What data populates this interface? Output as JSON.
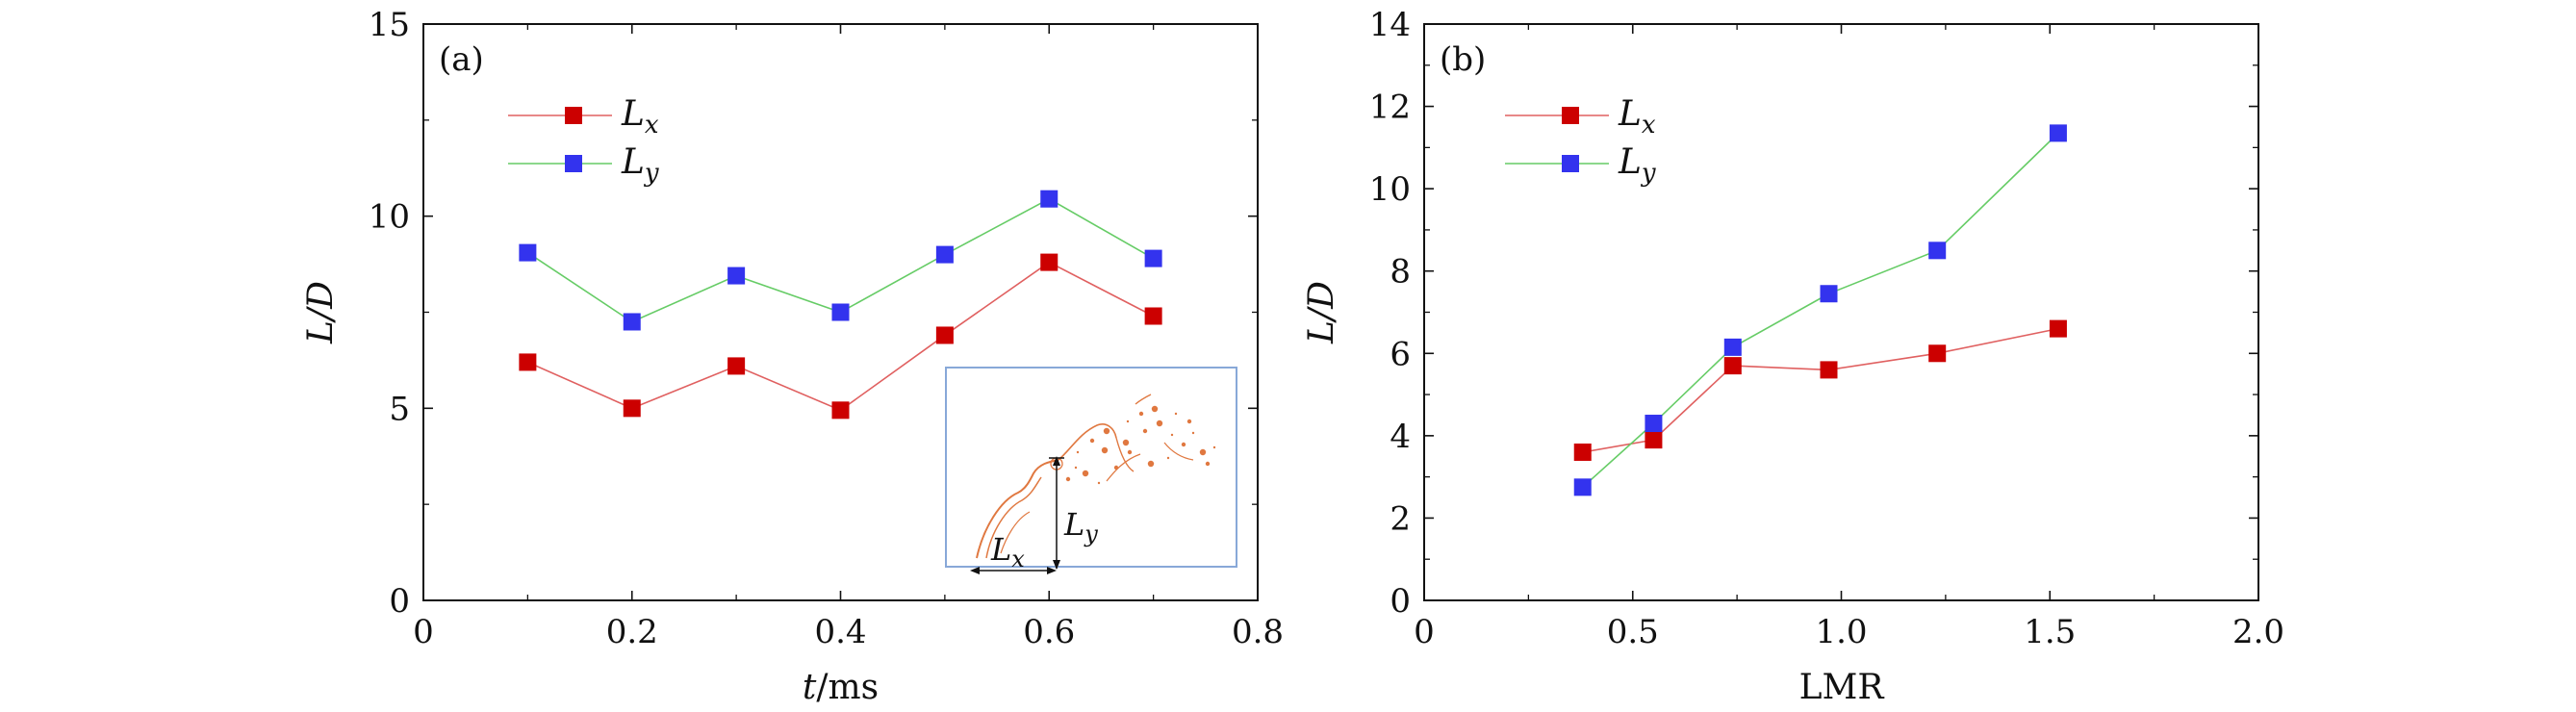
{
  "colors": {
    "lx_marker": "#cc0000",
    "lx_line": "#e06060",
    "ly_marker": "#3333ee",
    "ly_line": "#66cc66",
    "inset_border": "#88a8d8",
    "droplet": "#e07840"
  },
  "chart_data": [
    {
      "type": "line",
      "panel_label": "(a)",
      "xlabel_var": "t",
      "xlabel_unit": "/ms",
      "ylabel": "L/D",
      "xlim": [
        0,
        0.8
      ],
      "ylim": [
        0,
        15
      ],
      "xticks": [
        0,
        0.2,
        0.4,
        0.6,
        0.8
      ],
      "xtick_labels": [
        "0",
        "0.2",
        "0.4",
        "0.6",
        "0.8"
      ],
      "yticks": [
        0,
        5,
        10,
        15
      ],
      "ytick_labels": [
        "0",
        "5",
        "10",
        "15"
      ],
      "x": [
        0.1,
        0.2,
        0.3,
        0.4,
        0.5,
        0.6,
        0.7
      ],
      "series": [
        {
          "name": "Lx",
          "label_main": "L",
          "label_sub": "x",
          "values": [
            6.2,
            5.0,
            6.1,
            4.95,
            6.9,
            8.8,
            7.4
          ]
        },
        {
          "name": "Ly",
          "label_main": "L",
          "label_sub": "y",
          "values": [
            9.05,
            7.25,
            8.45,
            7.5,
            9.0,
            10.45,
            8.9
          ]
        }
      ],
      "legend_position": "top-left",
      "inset": {
        "label_x_main": "L",
        "label_x_sub": "x",
        "label_y_main": "L",
        "label_y_sub": "y"
      }
    },
    {
      "type": "line",
      "panel_label": "(b)",
      "xlabel": "LMR",
      "ylabel": "L/D",
      "xlim": [
        0,
        2.0
      ],
      "ylim": [
        0,
        14
      ],
      "xticks": [
        0,
        0.5,
        1.0,
        1.5,
        2.0
      ],
      "xtick_labels": [
        "0",
        "0.5",
        "1.0",
        "1.5",
        "2.0"
      ],
      "yticks": [
        0,
        2,
        4,
        6,
        8,
        10,
        12,
        14
      ],
      "ytick_labels": [
        "0",
        "2",
        "4",
        "6",
        "8",
        "10",
        "12",
        "14"
      ],
      "x": [
        0.38,
        0.55,
        0.74,
        0.97,
        1.23,
        1.52
      ],
      "series": [
        {
          "name": "Lx",
          "label_main": "L",
          "label_sub": "x",
          "values": [
            3.6,
            3.9,
            5.7,
            5.6,
            6.0,
            6.6
          ]
        },
        {
          "name": "Ly",
          "label_main": "L",
          "label_sub": "y",
          "values": [
            2.75,
            4.3,
            6.15,
            7.45,
            8.5,
            11.35
          ]
        }
      ],
      "legend_position": "top-left"
    }
  ]
}
